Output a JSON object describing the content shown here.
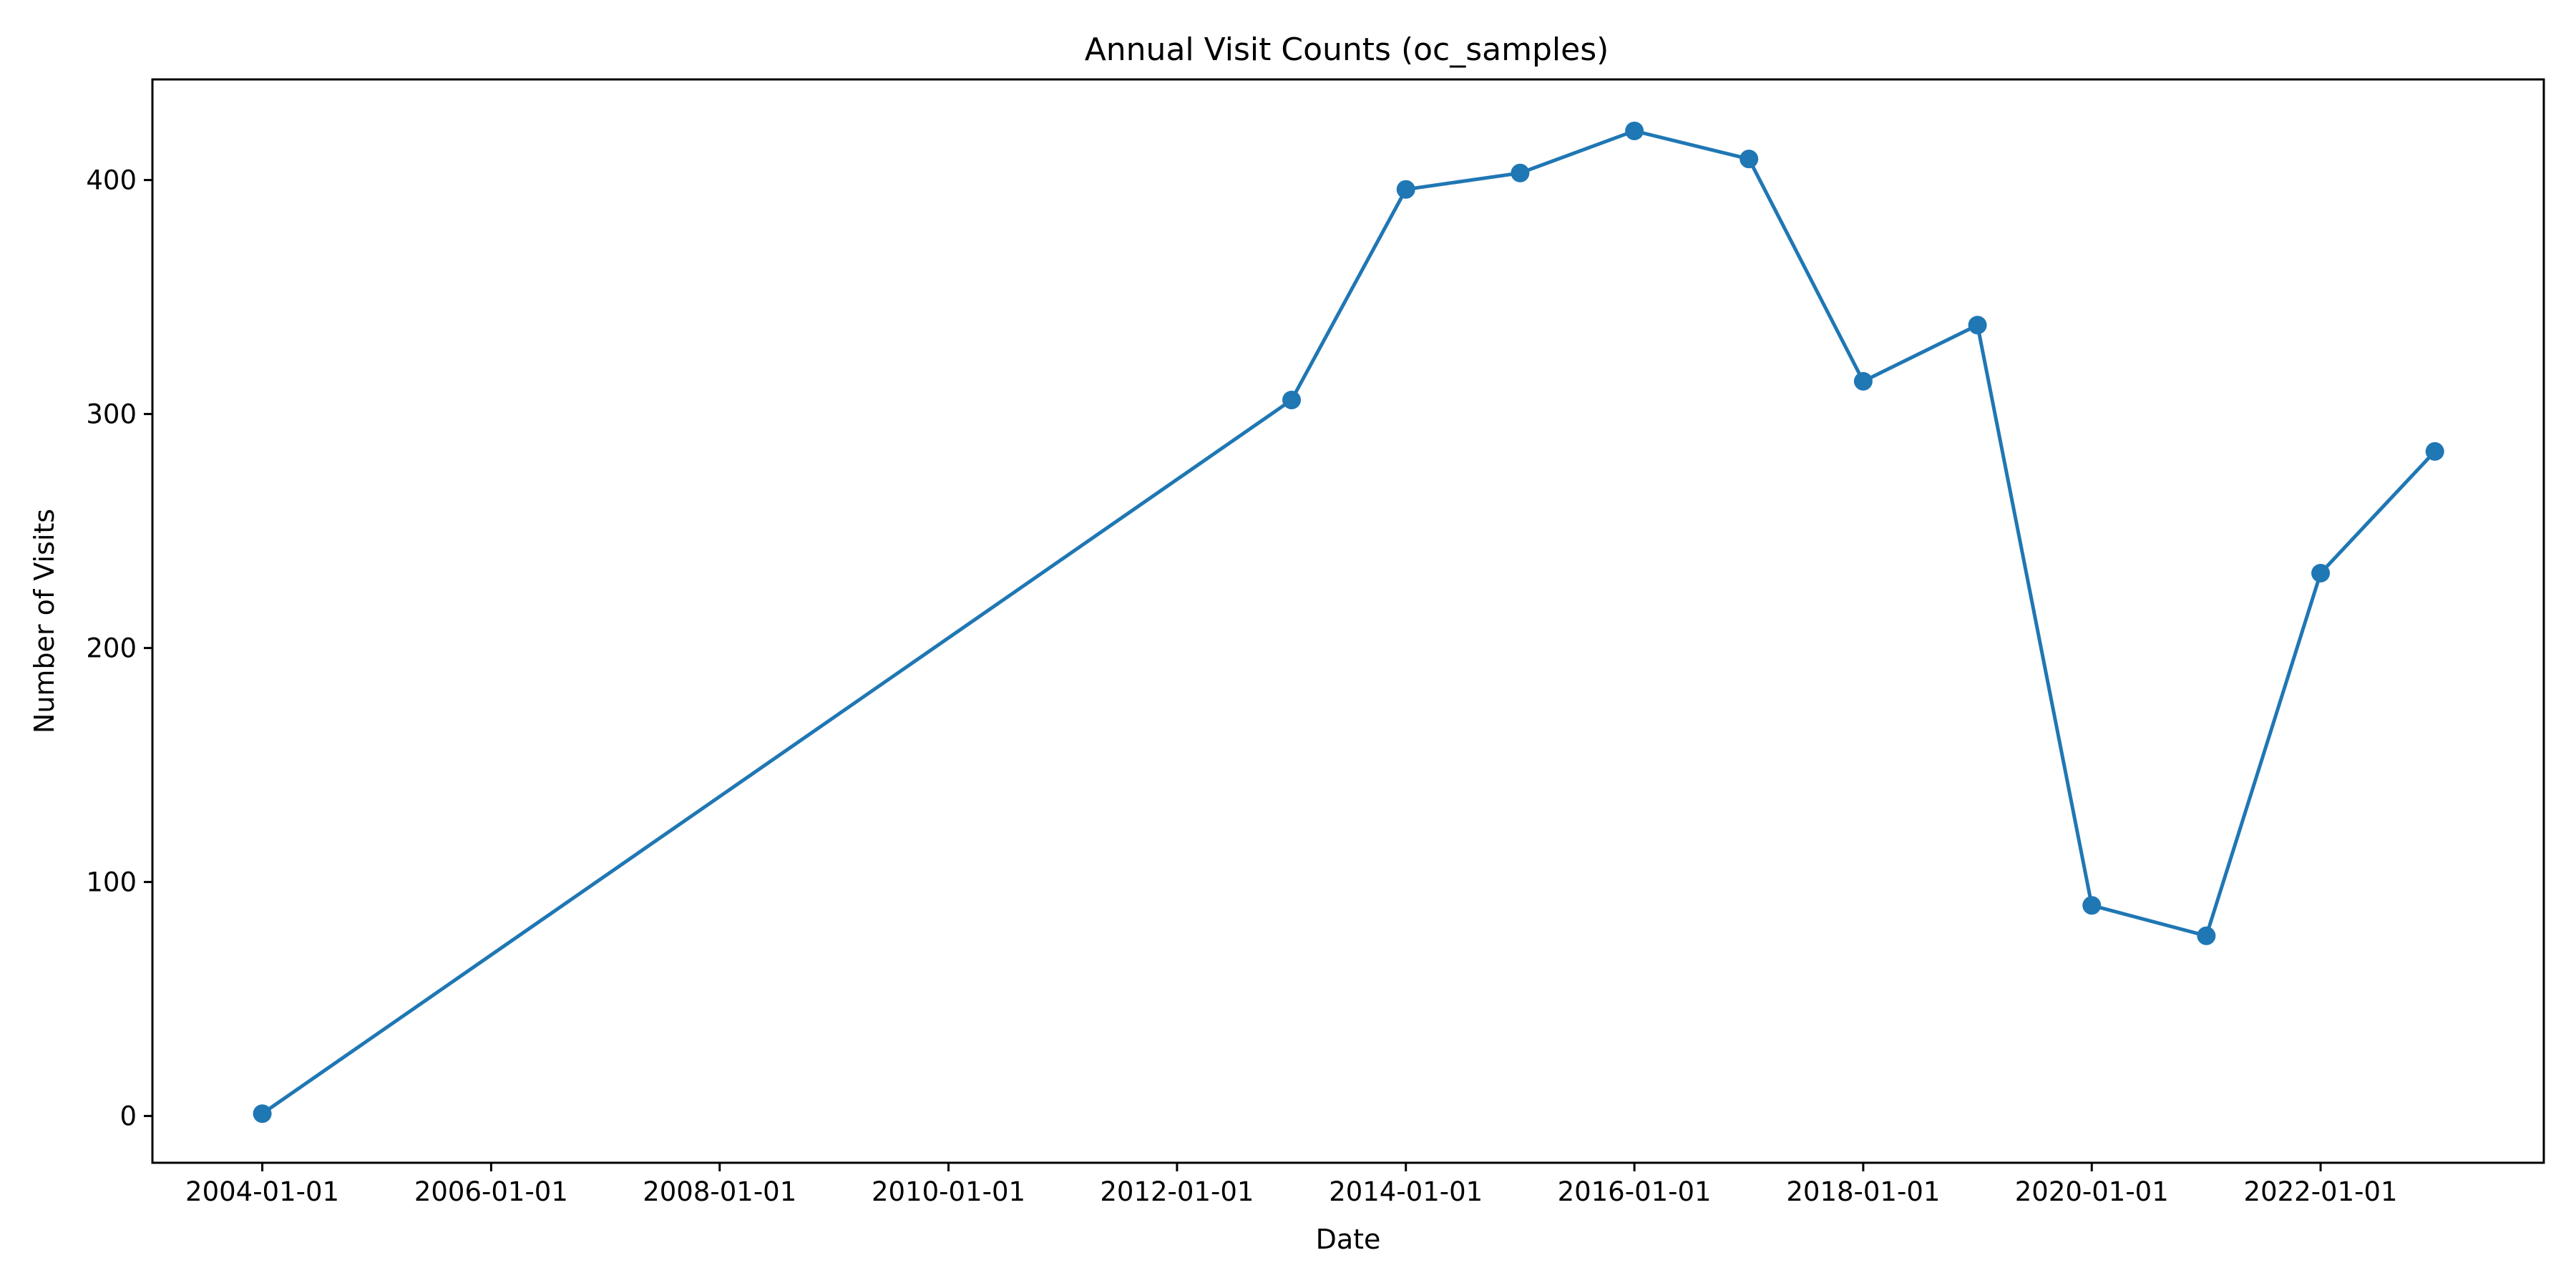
{
  "chart_data": {
    "type": "line",
    "title": "Annual Visit Counts (oc_samples)",
    "xlabel": "Date",
    "ylabel": "Number of Visits",
    "x": [
      "2004-01-01",
      "2013-01-01",
      "2014-01-01",
      "2015-01-01",
      "2016-01-01",
      "2017-01-01",
      "2018-01-01",
      "2019-01-01",
      "2020-01-01",
      "2021-01-01",
      "2022-01-01",
      "2023-01-01"
    ],
    "series": [
      {
        "values": [
          1,
          306,
          396,
          403,
          421,
          409,
          314,
          338,
          90,
          77,
          232,
          284
        ],
        "color": "#1f77b4"
      }
    ],
    "xlim": [
      "2003-01-15",
      "2023-12-15"
    ],
    "ylim": [
      -20,
      443
    ],
    "xticks": [
      "2004-01-01",
      "2006-01-01",
      "2008-01-01",
      "2010-01-01",
      "2012-01-01",
      "2014-01-01",
      "2016-01-01",
      "2018-01-01",
      "2020-01-01",
      "2022-01-01"
    ],
    "yticks": [
      0,
      100,
      200,
      300,
      400
    ],
    "grid": false,
    "marker": "circle"
  }
}
